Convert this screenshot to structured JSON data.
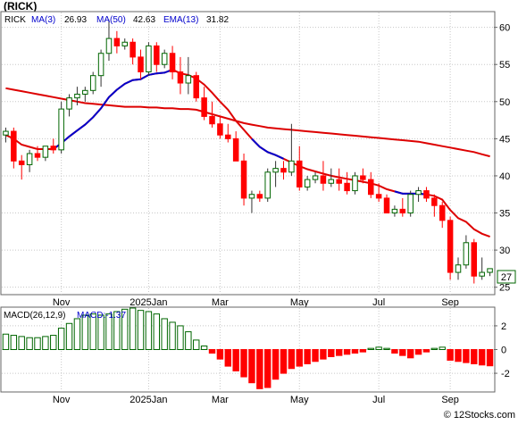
{
  "header": {
    "ticker_label": "(RICK)"
  },
  "legend": {
    "symbol": "RICK",
    "ma3_label": "MA(3)",
    "ma3_value": "26.93",
    "ma50_label": "MA(50)",
    "ma50_value": "42.63",
    "ema13_label": "EMA(13)",
    "ema13_value": "31.82"
  },
  "macd_legend": {
    "label": "MACD(26,12,9)",
    "value_label": "MACD:-1.37"
  },
  "footer": {
    "watermark": "© 12Stocks.com"
  },
  "colors": {
    "up": "#006600",
    "down": "#ff0000",
    "ema": "#0000cc",
    "ma": "#dd0000",
    "grid": "#c8c8c8",
    "last_price_border": "#006600"
  },
  "chart_data": [
    {
      "type": "candlestick",
      "ylim": [
        24,
        62
      ],
      "y_ticks": [
        25,
        30,
        35,
        40,
        45,
        50,
        55,
        60
      ],
      "x_tick_labels": [
        "Nov",
        "2025Jan",
        "Mar",
        "May",
        "Jul",
        "Sep"
      ],
      "x_tick_index": [
        7,
        18,
        27,
        37,
        47,
        56
      ],
      "grid": true,
      "last_price": "27",
      "candles": [
        [
          45.5,
          46.5,
          44.5,
          46
        ],
        [
          46,
          46.5,
          41,
          42
        ],
        [
          42,
          42.8,
          39.5,
          41.5
        ],
        [
          41.5,
          43.5,
          40.5,
          43
        ],
        [
          43,
          44,
          42,
          42.5
        ],
        [
          42.5,
          44,
          42,
          44
        ],
        [
          44,
          45,
          43,
          43.5
        ],
        [
          43.5,
          50,
          43,
          49
        ],
        [
          49,
          51,
          48,
          50.5
        ],
        [
          50.5,
          52,
          49.5,
          51
        ],
        [
          51,
          52,
          50,
          51.5
        ],
        [
          51.5,
          54,
          51,
          53.5
        ],
        [
          53.5,
          57,
          52,
          56.5
        ],
        [
          56.5,
          61,
          55.5,
          58.5
        ],
        [
          58.5,
          59.5,
          56.5,
          57.5
        ],
        [
          57.5,
          58.5,
          57,
          58
        ],
        [
          58,
          58.5,
          55,
          56
        ],
        [
          56,
          57,
          53,
          54
        ],
        [
          54,
          58,
          53.5,
          57.5
        ],
        [
          57.5,
          58,
          54,
          55
        ],
        [
          55,
          57,
          54.5,
          56.5
        ],
        [
          56.5,
          57.5,
          53,
          54
        ],
        [
          54,
          56,
          51,
          52.5
        ],
        [
          52.5,
          56,
          51,
          53.5
        ],
        [
          53.5,
          54,
          50,
          50.5
        ],
        [
          50.5,
          52,
          47.5,
          48
        ],
        [
          48,
          50,
          46.5,
          47
        ],
        [
          47,
          48,
          45,
          45.5
        ],
        [
          45.5,
          47,
          44.5,
          45
        ],
        [
          45,
          46,
          42,
          42
        ],
        [
          42,
          43,
          36,
          37
        ],
        [
          37,
          38,
          35,
          37.5
        ],
        [
          37.5,
          38,
          36.5,
          37
        ],
        [
          37,
          41,
          36.5,
          40.5
        ],
        [
          40.5,
          42,
          38.5,
          41
        ],
        [
          41,
          42,
          39.5,
          40.5
        ],
        [
          40.5,
          47,
          40,
          42
        ],
        [
          42,
          44,
          38,
          38.5
        ],
        [
          38.5,
          40,
          38,
          39.5
        ],
        [
          39.5,
          40.5,
          39,
          40
        ],
        [
          40,
          42,
          38,
          39
        ],
        [
          39,
          41,
          38.5,
          39.5
        ],
        [
          39.5,
          41,
          38,
          39
        ],
        [
          39,
          40.5,
          37.5,
          38
        ],
        [
          38,
          40.5,
          37.5,
          40
        ],
        [
          40,
          41,
          39,
          39.5
        ],
        [
          39.5,
          40.5,
          37,
          37.5
        ],
        [
          37.5,
          39,
          36.5,
          37
        ],
        [
          37,
          37.5,
          35,
          35
        ],
        [
          35,
          36,
          34.5,
          35.5
        ],
        [
          35.5,
          37,
          34.5,
          35
        ],
        [
          35,
          38,
          34.5,
          37.5
        ],
        [
          37.5,
          38.5,
          36.5,
          38
        ],
        [
          38,
          38.5,
          36.5,
          37
        ],
        [
          37,
          37.5,
          34.5,
          36
        ],
        [
          36,
          36.5,
          33,
          34
        ],
        [
          34,
          34.5,
          26,
          27
        ],
        [
          27,
          29,
          26,
          28
        ],
        [
          28,
          32,
          27.5,
          31
        ],
        [
          31,
          31.5,
          25.5,
          26.5
        ],
        [
          26.5,
          29,
          26,
          27
        ],
        [
          27,
          27.5,
          26.5,
          27.5
        ]
      ],
      "ema13": [
        45.5,
        45,
        44.2,
        43.9,
        43.6,
        43.6,
        43.6,
        44.4,
        45.3,
        46.1,
        46.9,
        47.9,
        49.1,
        50.6,
        51.6,
        52.4,
        52.9,
        53,
        53.6,
        53.8,
        53.9,
        54.3,
        53.8,
        53.6,
        53.1,
        52.3,
        51.2,
        50,
        48.9,
        47.4,
        46.2,
        45,
        43.9,
        43.2,
        42.8,
        42.3,
        41.8,
        41.3,
        40.9,
        40.6,
        40.3,
        40,
        39.8,
        39.6,
        39.4,
        39.2,
        39,
        38.7,
        38.2,
        37.9,
        37.6,
        37.6,
        37.6,
        37.5,
        37.3,
        36.8,
        35.4,
        34.3,
        33.8,
        32.8,
        32.2,
        31.8
      ],
      "ma50": [
        51.8,
        51.6,
        51.4,
        51.2,
        51,
        50.8,
        50.6,
        50.4,
        50.2,
        50,
        49.8,
        49.7,
        49.6,
        49.5,
        49.4,
        49.3,
        49.3,
        49.3,
        49.2,
        49.2,
        49.1,
        49.1,
        49,
        49,
        48.9,
        48.6,
        48.3,
        48,
        47.7,
        47.4,
        47.1,
        46.9,
        46.7,
        46.5,
        46.4,
        46.3,
        46.2,
        46.1,
        46,
        45.9,
        45.8,
        45.7,
        45.6,
        45.5,
        45.4,
        45.3,
        45.2,
        45.1,
        45,
        44.9,
        44.8,
        44.7,
        44.6,
        44.4,
        44.2,
        44,
        43.8,
        43.6,
        43.4,
        43.2,
        42.9,
        42.63
      ]
    },
    {
      "type": "bar",
      "name": "MACD",
      "ylim": [
        -3.5,
        3.5
      ],
      "y_ticks": [
        -2,
        0,
        2
      ],
      "x_tick_labels": [
        "Nov",
        "2025Jan",
        "Mar",
        "May",
        "Jul",
        "Sep"
      ],
      "x_tick_index": [
        7,
        18,
        27,
        37,
        47,
        56
      ],
      "values": [
        1.3,
        1.2,
        1.1,
        1.0,
        1.0,
        1.1,
        1.2,
        1.8,
        2.2,
        2.6,
        2.9,
        3.0,
        2.9,
        3.0,
        3.2,
        3.4,
        3.5,
        3.3,
        3.2,
        3.0,
        2.6,
        2.3,
        2.0,
        1.5,
        0.8,
        0.3,
        -0.3,
        -0.8,
        -1.4,
        -1.8,
        -2.3,
        -2.8,
        -3.3,
        -3.2,
        -2.5,
        -2.0,
        -1.6,
        -1.4,
        -1.2,
        -1.0,
        -0.8,
        -0.6,
        -0.5,
        -0.4,
        -0.3,
        -0.2,
        0.1,
        0.2,
        0.1,
        -0.3,
        -0.5,
        -0.7,
        -0.4,
        -0.2,
        0.1,
        0.2,
        -0.9,
        -1.0,
        -1.1,
        -1.2,
        -1.3,
        -1.37
      ]
    }
  ]
}
